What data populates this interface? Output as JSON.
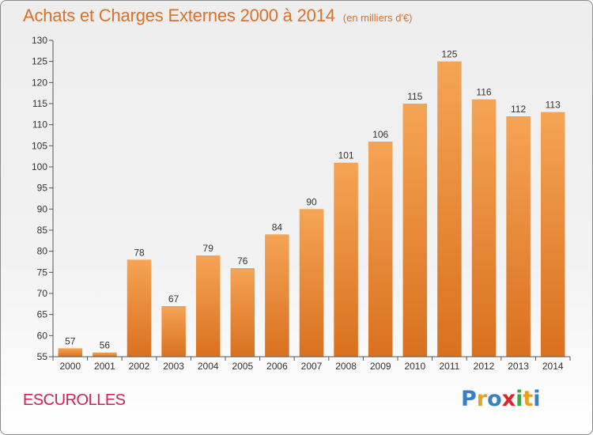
{
  "header": {
    "title": "Achats et Charges Externes 2000 à 2014",
    "subtitle": "(en milliers d'€)"
  },
  "footer": {
    "commune": "ESCUROLLES",
    "logo_text": "Proxiti",
    "logo_colors": [
      "#3a7fc4",
      "#e8a020",
      "#3a7fc4",
      "#d6262a",
      "#3aa64a",
      "#e8a020",
      "#3a7fc4"
    ]
  },
  "colors": {
    "bar_top": "#f5a455",
    "bar_bottom": "#d9711f",
    "title": "#d8722a",
    "commune": "#cc2255"
  },
  "chart_data": {
    "type": "bar",
    "categories": [
      "2000",
      "2001",
      "2002",
      "2003",
      "2004",
      "2005",
      "2006",
      "2007",
      "2008",
      "2009",
      "2010",
      "2011",
      "2012",
      "2013",
      "2014"
    ],
    "values": [
      57,
      56,
      78,
      67,
      79,
      76,
      84,
      90,
      101,
      106,
      115,
      125,
      116,
      112,
      113
    ],
    "title": "Achats et Charges Externes 2000 à 2014",
    "subtitle": "(en milliers d'€)",
    "xlabel": "",
    "ylabel": "",
    "ylim": [
      55,
      130
    ],
    "yticks": [
      55,
      60,
      65,
      70,
      75,
      80,
      85,
      90,
      95,
      100,
      105,
      110,
      115,
      120,
      125,
      130
    ],
    "grid": false,
    "data_labels": true
  }
}
